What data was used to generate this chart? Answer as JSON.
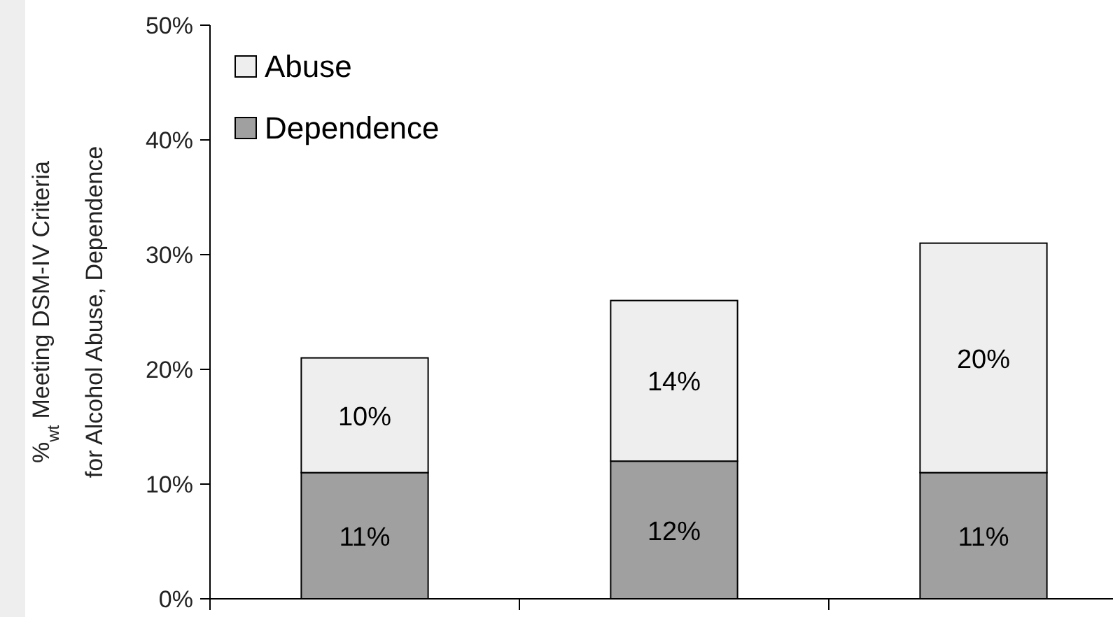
{
  "chart_data": {
    "type": "bar",
    "stacked": true,
    "ylabel": "%$_{wt}$ Meeting DSM-IV Criteria\nfor Alcohol Abuse, Dependence",
    "categories": [
      null,
      null,
      null
    ],
    "series": [
      {
        "name": "Dependence",
        "color": "#a0a0a0",
        "values": [
          11,
          12,
          11
        ],
        "value_labels": [
          "11%",
          "12%",
          "11%"
        ]
      },
      {
        "name": "Abuse",
        "color": "#eeeeee",
        "values": [
          10,
          14,
          20
        ],
        "value_labels": [
          "10%",
          "14%",
          "20%"
        ]
      }
    ],
    "ylim": [
      0,
      50
    ],
    "yticks": [
      {
        "value": 0,
        "label": "0%"
      },
      {
        "value": 10,
        "label": "10%"
      },
      {
        "value": 20,
        "label": "20%"
      },
      {
        "value": 30,
        "label": "30%"
      },
      {
        "value": 40,
        "label": "40%"
      },
      {
        "value": 50,
        "label": "50%"
      }
    ],
    "legend": "top left",
    "grid": false
  }
}
